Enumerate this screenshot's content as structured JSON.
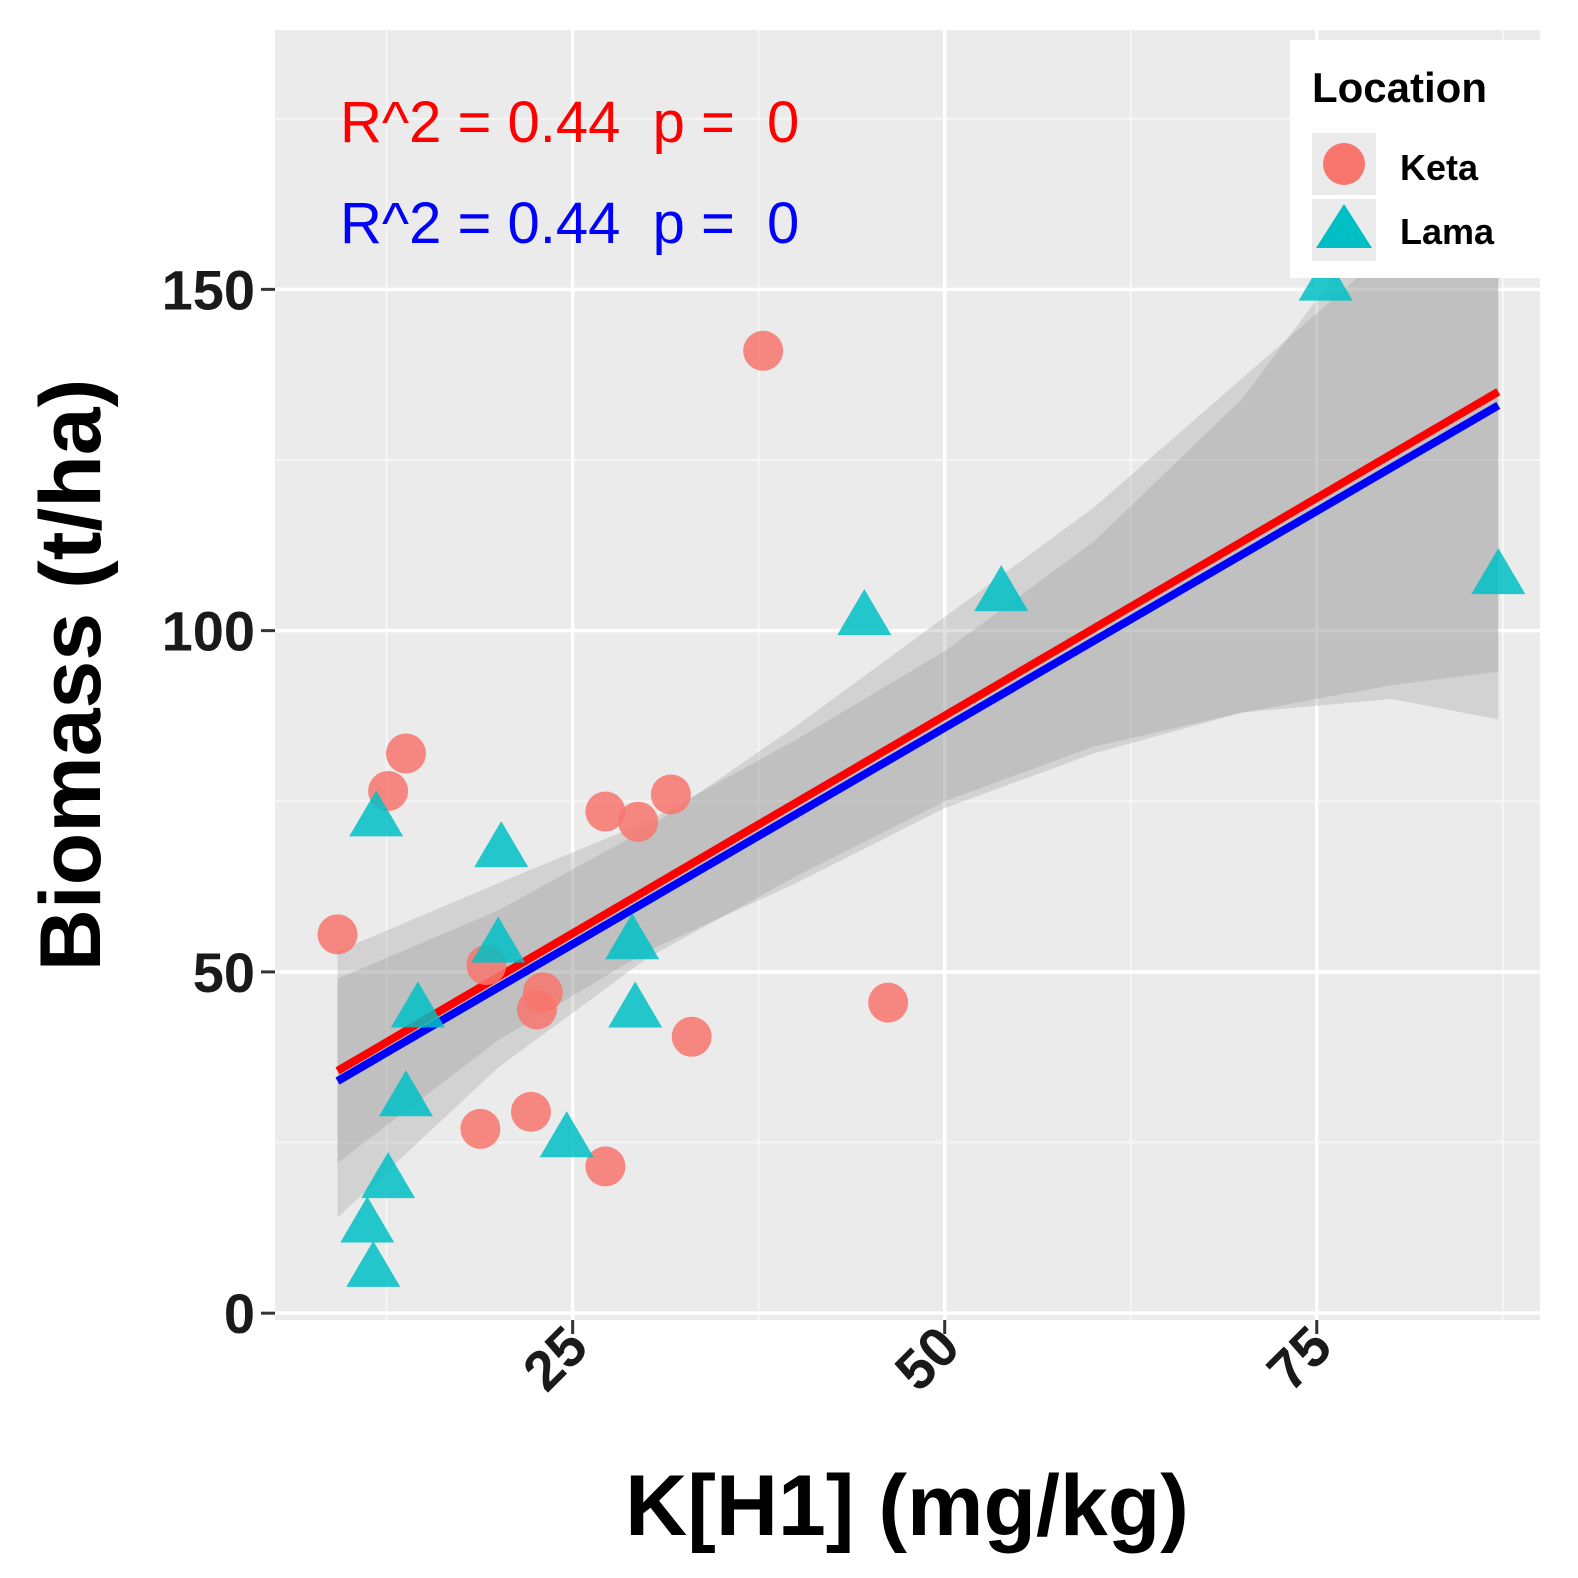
{
  "chart_data": {
    "type": "scatter",
    "xlabel": "K[H1] (mg/kg)",
    "ylabel": "Biomass (t/ha)",
    "xlim": [
      5,
      90
    ],
    "ylim": [
      -1,
      188
    ],
    "x_ticks": [
      25,
      50,
      75
    ],
    "y_ticks": [
      0,
      50,
      100,
      150
    ],
    "grid": true,
    "legend": {
      "title": "Location",
      "position": "top-right",
      "entries": [
        {
          "label": "Keta",
          "shape": "circle",
          "color": "#F8766D"
        },
        {
          "label": "Lama",
          "shape": "triangle",
          "color": "#00BFC4"
        }
      ]
    },
    "annotations": [
      {
        "text": "R^2 = 0.44  p =  0",
        "color": "#FF0000"
      },
      {
        "text": "R^2 = 0.44  p =  0",
        "color": "#0000FF"
      }
    ],
    "series": [
      {
        "name": "Keta",
        "color": "#F8766D",
        "shape": "circle",
        "points": [
          {
            "x": 9.2,
            "y": 55.5
          },
          {
            "x": 12.6,
            "y": 76.5
          },
          {
            "x": 13.8,
            "y": 82.0
          },
          {
            "x": 19.2,
            "y": 51.0
          },
          {
            "x": 18.8,
            "y": 27.0
          },
          {
            "x": 22.2,
            "y": 29.5
          },
          {
            "x": 22.6,
            "y": 44.5
          },
          {
            "x": 23.0,
            "y": 47.0
          },
          {
            "x": 27.2,
            "y": 73.5
          },
          {
            "x": 27.2,
            "y": 21.5
          },
          {
            "x": 29.4,
            "y": 72.0
          },
          {
            "x": 31.6,
            "y": 76.0
          },
          {
            "x": 33.0,
            "y": 40.5
          },
          {
            "x": 37.8,
            "y": 141.0
          },
          {
            "x": 46.2,
            "y": 45.5
          }
        ]
      },
      {
        "name": "Lama",
        "color": "#00BFC4",
        "shape": "triangle",
        "points": [
          {
            "x": 11.2,
            "y": 13.5
          },
          {
            "x": 11.6,
            "y": 7.0
          },
          {
            "x": 11.8,
            "y": 73.0
          },
          {
            "x": 12.6,
            "y": 20.0
          },
          {
            "x": 13.8,
            "y": 32.0
          },
          {
            "x": 14.6,
            "y": 45.0
          },
          {
            "x": 20.0,
            "y": 54.5
          },
          {
            "x": 20.2,
            "y": 68.5
          },
          {
            "x": 24.6,
            "y": 26.0
          },
          {
            "x": 29.0,
            "y": 55.0
          },
          {
            "x": 29.2,
            "y": 45.0
          },
          {
            "x": 44.6,
            "y": 102.5
          },
          {
            "x": 53.8,
            "y": 106.0
          },
          {
            "x": 75.6,
            "y": 151.5
          },
          {
            "x": 87.2,
            "y": 108.5
          }
        ]
      }
    ],
    "fit_lines": [
      {
        "name": "Keta",
        "color": "#FF0000",
        "x": [
          9.2,
          87.2
        ],
        "y": [
          35.5,
          135.0
        ]
      },
      {
        "name": "Lama",
        "color": "#0000FF",
        "x": [
          9.2,
          87.2
        ],
        "y": [
          34.0,
          133.0
        ]
      }
    ],
    "confidence_bands": [
      {
        "name": "Keta",
        "x": [
          9.2,
          20,
          30,
          40,
          50,
          60,
          70,
          80,
          87.2
        ],
        "lower": [
          22.0,
          40.0,
          53.0,
          63.0,
          74.0,
          82.0,
          88.0,
          92.0,
          94.0
        ],
        "upper": [
          49.0,
          59.0,
          71.0,
          86.0,
          102.0,
          118.0,
          137.0,
          156.0,
          177.0
        ]
      },
      {
        "name": "Lama",
        "x": [
          9.2,
          20,
          30,
          40,
          50,
          60,
          70,
          80,
          87.2
        ],
        "lower": [
          14.0,
          36.0,
          52.0,
          64.0,
          75.0,
          83.0,
          88.0,
          90.0,
          87.0
        ],
        "upper": [
          53.0,
          63.0,
          72.0,
          84.0,
          97.0,
          113.0,
          134.0,
          163.0,
          179.0
        ]
      }
    ]
  }
}
